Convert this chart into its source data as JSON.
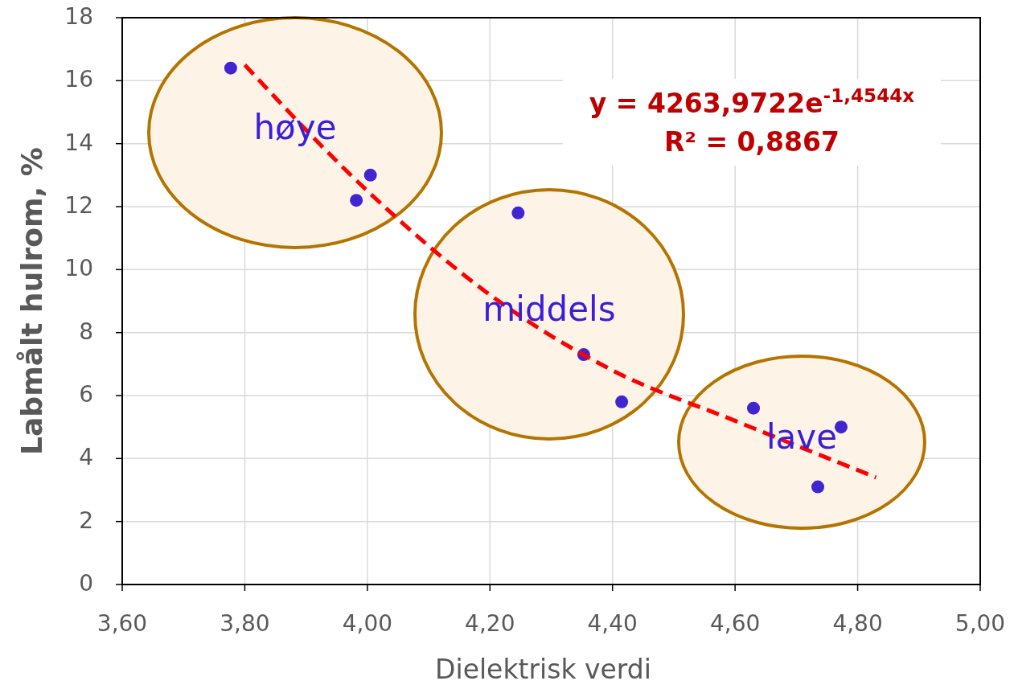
{
  "chart_data": {
    "type": "scatter",
    "xlabel": "Dielektrisk verdi",
    "ylabel": "Labmålt hulrom, %",
    "xlim": [
      3.6,
      5.0
    ],
    "xticks": [
      {
        "value": 3.6,
        "label": "3,60"
      },
      {
        "value": 3.8,
        "label": "3,80"
      },
      {
        "value": 4.0,
        "label": "4,00"
      },
      {
        "value": 4.2,
        "label": "4,20"
      },
      {
        "value": 4.4,
        "label": "4,40"
      },
      {
        "value": 4.6,
        "label": "4,60"
      },
      {
        "value": 4.8,
        "label": "4,80"
      },
      {
        "value": 5.0,
        "label": "5,00"
      }
    ],
    "ylim": [
      0,
      18
    ],
    "yticks": [
      0,
      2,
      4,
      6,
      8,
      10,
      12,
      14,
      16,
      18
    ],
    "grid": true,
    "series": [
      {
        "marker": "circle",
        "color": "#4125d1",
        "x": [
          3.777,
          3.982,
          4.005,
          4.246,
          4.353,
          4.415,
          4.63,
          4.735,
          4.773
        ],
        "values": [
          16.4,
          12.2,
          13.0,
          11.8,
          7.3,
          5.8,
          5.6,
          3.1,
          5.0
        ]
      },
      {
        "type": "line",
        "color": "#ff0000",
        "line_style": "dashed",
        "x": [
          3.8,
          4.0,
          4.2,
          4.4,
          4.6,
          4.83
        ],
        "values": [
          16.5,
          12.5,
          9.2,
          6.8,
          5.2,
          3.4
        ]
      }
    ],
    "annotations": [
      "høye",
      "middels",
      "lave",
      "y = 4263,9722e$^{-1,4544x}$",
      "R² = 0,8867"
    ]
  }
}
